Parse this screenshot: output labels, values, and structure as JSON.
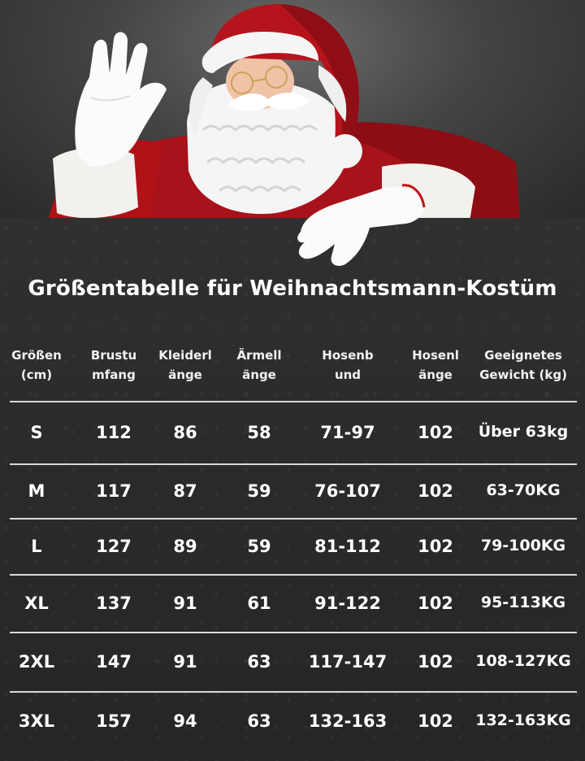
{
  "title": "Größentabelle für Weihnachtsmann-Kostüm",
  "headers": [
    [
      "Größen",
      "(cm)"
    ],
    [
      "Brustu",
      "mfang"
    ],
    [
      "Kleiderl",
      "änge"
    ],
    [
      "Ärmell",
      "änge"
    ],
    [
      "Hosenb",
      "und"
    ],
    [
      "Hosenl",
      "änge"
    ],
    [
      "Geeignetes",
      "Gewicht (kg)"
    ]
  ],
  "rows": [
    [
      "S",
      "112",
      "86",
      "58",
      "71-97",
      "102",
      "Über 63kg"
    ],
    [
      "M",
      "117",
      "87",
      "59",
      "76-107",
      "102",
      "63-70KG"
    ],
    [
      "L",
      "127",
      "89",
      "59",
      "81-112",
      "102",
      "79-100KG"
    ],
    [
      "XL",
      "137",
      "91",
      "61",
      "91-122",
      "102",
      "95-113KG"
    ],
    [
      "2XL",
      "147",
      "91",
      "63",
      "117-147",
      "102",
      "108-127KG"
    ],
    [
      "3XL",
      "157",
      "94",
      "63",
      "132-163",
      "102",
      "132-163KG"
    ]
  ],
  "colors": {
    "background": "#2b2b2b",
    "text": "#ffffff",
    "suit_red": "#b01218",
    "fur_white": "#f4f4f4"
  }
}
